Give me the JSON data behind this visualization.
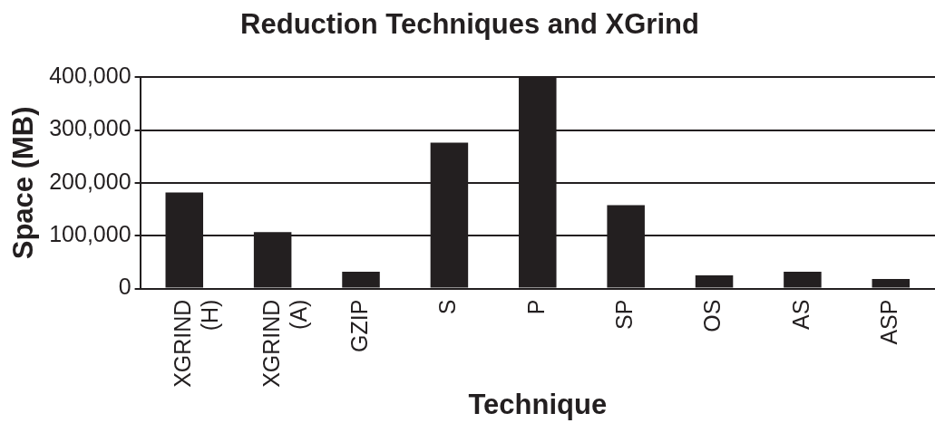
{
  "chart_data": {
    "type": "bar",
    "title": "Reduction Techniques and XGrind",
    "xlabel": "Technique",
    "ylabel": "Space (MB)",
    "categories": [
      "XGRIND (H)",
      "XGRIND (A)",
      "GZIP",
      "S",
      "P",
      "SP",
      "OS",
      "AS",
      "ASP"
    ],
    "values": [
      182000,
      107000,
      32000,
      276000,
      400000,
      158000,
      25000,
      32000,
      18000
    ],
    "color": "#231f20",
    "ylim": [
      0,
      400000
    ],
    "yticks": [
      0,
      {
        "value": 100000,
        "label": "100,000"
      },
      {
        "value": 200000,
        "label": "200,000"
      },
      {
        "value": 300000,
        "label": "300,000"
      },
      {
        "value": 400000,
        "label": "400,000"
      }
    ],
    "grid": "y",
    "legend": false
  }
}
